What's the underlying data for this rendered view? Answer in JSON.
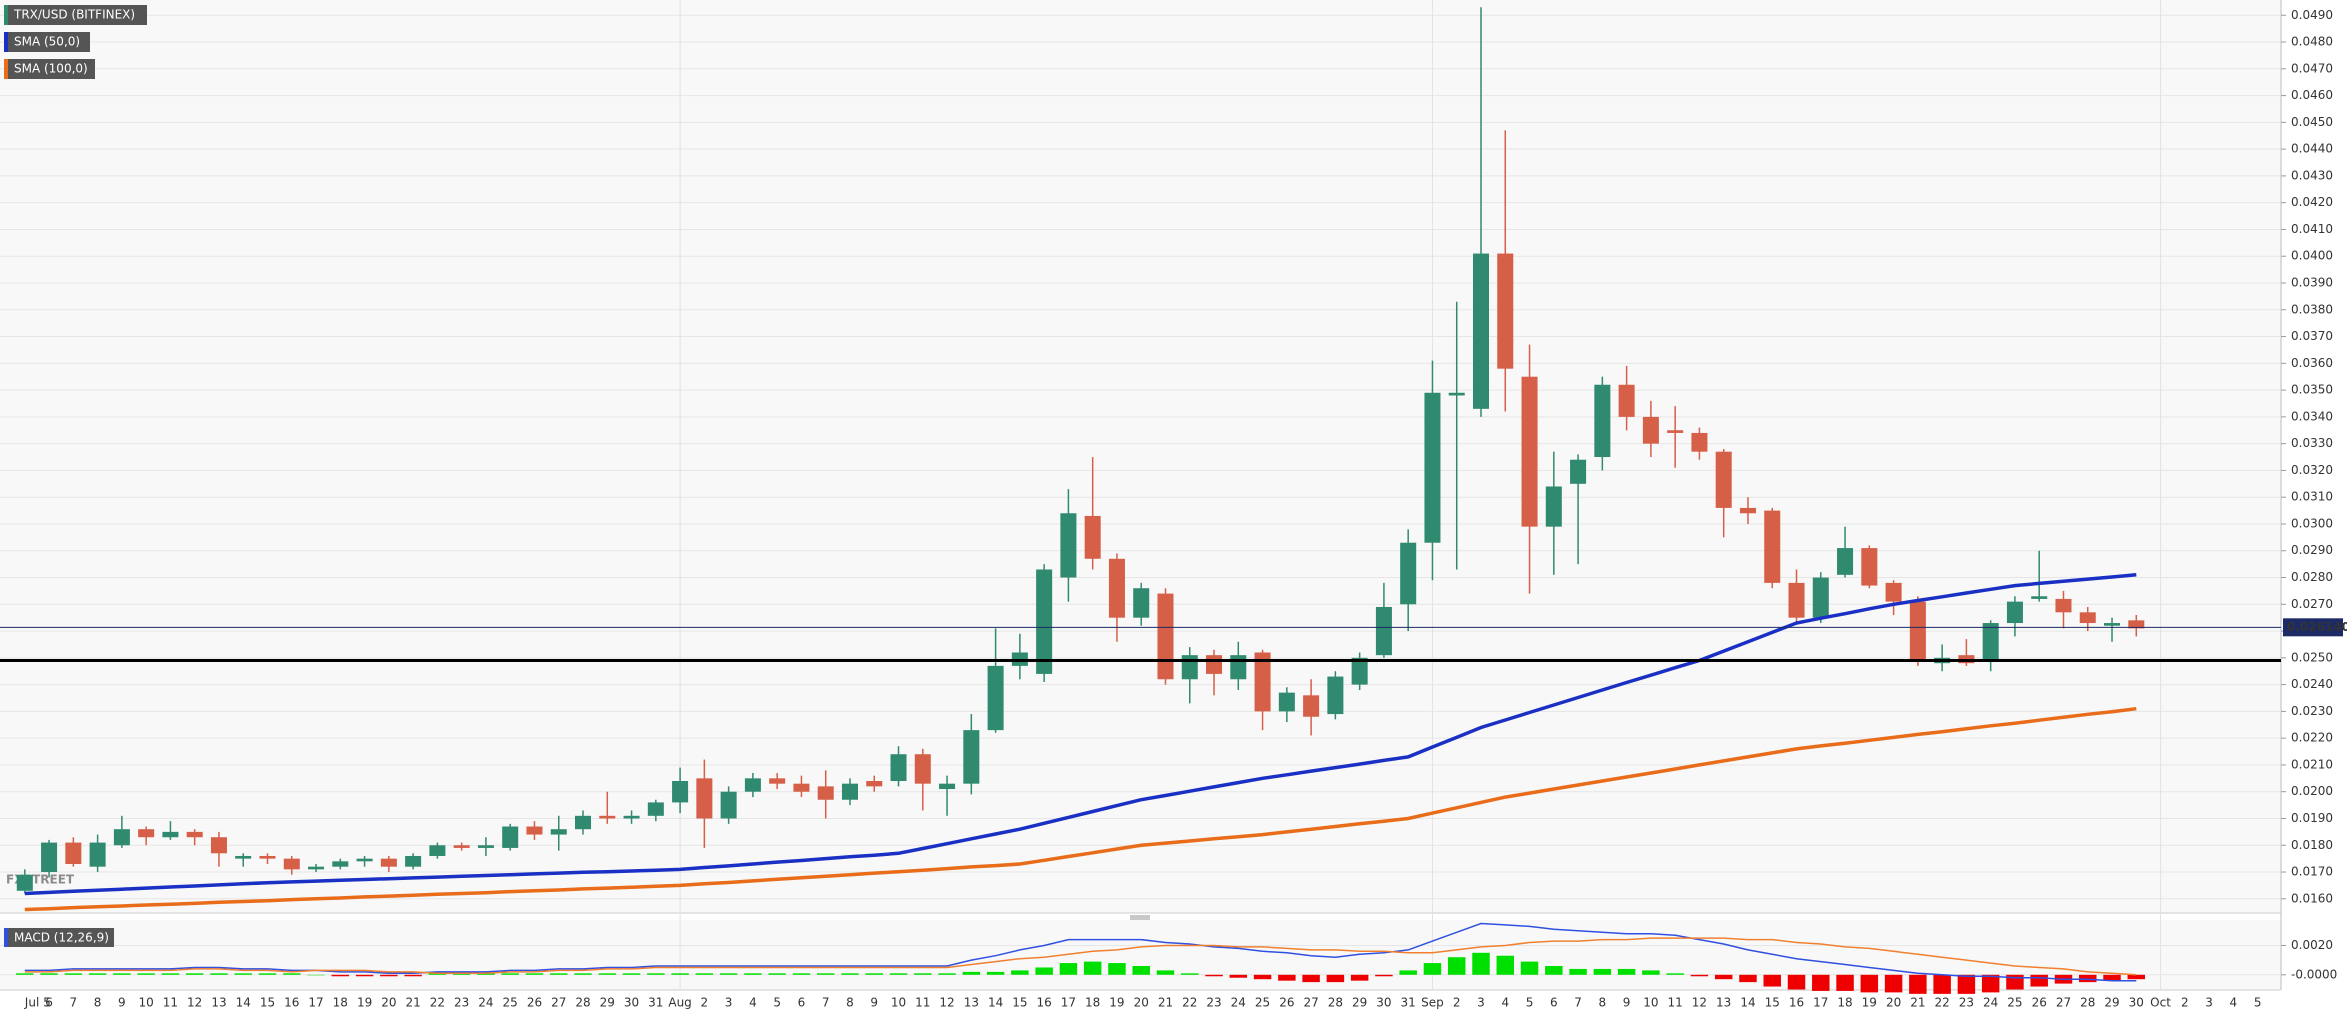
{
  "chart_data": [
    {
      "type": "candlestick",
      "title": "TRX/USD (BITFINEX)",
      "watermark": "FXSTREET",
      "categories": [
        "Jul 5",
        "6",
        "7",
        "8",
        "9",
        "10",
        "11",
        "12",
        "13",
        "14",
        "15",
        "16",
        "17",
        "18",
        "19",
        "20",
        "21",
        "22",
        "23",
        "24",
        "25",
        "26",
        "27",
        "28",
        "29",
        "30",
        "31",
        "Aug",
        "2",
        "3",
        "4",
        "5",
        "6",
        "7",
        "8",
        "9",
        "10",
        "11",
        "12",
        "13",
        "14",
        "15",
        "16",
        "17",
        "18",
        "19",
        "20",
        "21",
        "22",
        "23",
        "24",
        "25",
        "26",
        "27",
        "28",
        "29",
        "30",
        "31",
        "Sep",
        "2",
        "3",
        "4",
        "5",
        "6",
        "7",
        "8",
        "9",
        "10",
        "11",
        "12",
        "13",
        "14",
        "15",
        "16",
        "17",
        "18",
        "19",
        "20",
        "21",
        "22",
        "23",
        "24",
        "25",
        "26",
        "27",
        "28",
        "29",
        "30"
      ],
      "future_categories": [
        "Oct",
        "2",
        "3",
        "4",
        "5"
      ],
      "open": [
        0.0163,
        0.017,
        0.0181,
        0.0172,
        0.018,
        0.0186,
        0.0183,
        0.0185,
        0.0183,
        0.0175,
        0.0176,
        0.0175,
        0.0171,
        0.0172,
        0.0174,
        0.0175,
        0.0172,
        0.0176,
        0.018,
        0.0179,
        0.0179,
        0.0187,
        0.0184,
        0.0186,
        0.0191,
        0.019,
        0.0191,
        0.0196,
        0.0205,
        0.019,
        0.02,
        0.0205,
        0.0203,
        0.0202,
        0.0197,
        0.0204,
        0.0204,
        0.0214,
        0.0201,
        0.0203,
        0.0223,
        0.0247,
        0.0244,
        0.028,
        0.0303,
        0.0287,
        0.0265,
        0.0274,
        0.0242,
        0.0251,
        0.0242,
        0.0252,
        0.023,
        0.0236,
        0.0229,
        0.024,
        0.0251,
        0.027,
        0.0293,
        0.0348,
        0.0343,
        0.0401,
        0.0355,
        0.0299,
        0.0315,
        0.0325,
        0.0352,
        0.034,
        0.0335,
        0.0334,
        0.0327,
        0.0306,
        0.0305,
        0.0278,
        0.0265,
        0.0281,
        0.0291,
        0.0278,
        0.0271,
        0.0248,
        0.0251,
        0.0249,
        0.0263,
        0.0272,
        0.0272,
        0.0267,
        0.0262,
        0.0264
      ],
      "high": [
        0.0171,
        0.0182,
        0.0183,
        0.0184,
        0.0191,
        0.0187,
        0.0189,
        0.0186,
        0.0185,
        0.0177,
        0.0177,
        0.0176,
        0.0173,
        0.0175,
        0.0176,
        0.0176,
        0.0177,
        0.0181,
        0.0181,
        0.0183,
        0.0188,
        0.0189,
        0.0191,
        0.0193,
        0.02,
        0.0193,
        0.0197,
        0.0209,
        0.0212,
        0.0202,
        0.0207,
        0.0207,
        0.0206,
        0.0208,
        0.0205,
        0.0206,
        0.0217,
        0.0216,
        0.0206,
        0.0229,
        0.0261,
        0.0259,
        0.0285,
        0.0313,
        0.0325,
        0.0289,
        0.0278,
        0.0276,
        0.0254,
        0.0253,
        0.0256,
        0.0253,
        0.0239,
        0.0242,
        0.0245,
        0.0252,
        0.0278,
        0.0298,
        0.0361,
        0.0383,
        0.0493,
        0.0447,
        0.0367,
        0.0327,
        0.0326,
        0.0355,
        0.0359,
        0.0346,
        0.0344,
        0.0336,
        0.0328,
        0.031,
        0.0306,
        0.0283,
        0.0282,
        0.0299,
        0.0292,
        0.0279,
        0.0273,
        0.0255,
        0.0257,
        0.0264,
        0.0273,
        0.029,
        0.0275,
        0.0269,
        0.0265,
        0.0266
      ],
      "low": [
        0.0162,
        0.0168,
        0.0172,
        0.017,
        0.0179,
        0.018,
        0.0182,
        0.018,
        0.0172,
        0.0172,
        0.0173,
        0.0169,
        0.017,
        0.0171,
        0.0172,
        0.017,
        0.0171,
        0.0175,
        0.0178,
        0.0176,
        0.0178,
        0.0182,
        0.0178,
        0.0184,
        0.0188,
        0.0188,
        0.0189,
        0.0192,
        0.0179,
        0.0188,
        0.0198,
        0.0201,
        0.0198,
        0.019,
        0.0195,
        0.02,
        0.0202,
        0.0193,
        0.0191,
        0.0199,
        0.0222,
        0.0242,
        0.0241,
        0.0271,
        0.0283,
        0.0256,
        0.0262,
        0.024,
        0.0233,
        0.0236,
        0.0238,
        0.0223,
        0.0226,
        0.0221,
        0.0227,
        0.0238,
        0.025,
        0.026,
        0.0279,
        0.0283,
        0.034,
        0.0342,
        0.0274,
        0.0281,
        0.0285,
        0.032,
        0.0335,
        0.0325,
        0.0321,
        0.0324,
        0.0295,
        0.03,
        0.0276,
        0.0263,
        0.0263,
        0.028,
        0.0276,
        0.0266,
        0.0247,
        0.0245,
        0.0247,
        0.0245,
        0.0258,
        0.0271,
        0.0261,
        0.026,
        0.0256,
        0.0258
      ],
      "close": [
        0.0169,
        0.0181,
        0.0173,
        0.0181,
        0.0186,
        0.0183,
        0.0185,
        0.0183,
        0.0177,
        0.0176,
        0.0175,
        0.0171,
        0.0172,
        0.0174,
        0.0175,
        0.0172,
        0.0176,
        0.018,
        0.0179,
        0.018,
        0.0187,
        0.0184,
        0.0186,
        0.0191,
        0.019,
        0.0191,
        0.0196,
        0.0204,
        0.019,
        0.02,
        0.0205,
        0.0203,
        0.02,
        0.0197,
        0.0203,
        0.0202,
        0.0214,
        0.0203,
        0.0203,
        0.0223,
        0.0247,
        0.0252,
        0.0283,
        0.0304,
        0.0287,
        0.0265,
        0.0276,
        0.0242,
        0.0251,
        0.0244,
        0.0251,
        0.023,
        0.0237,
        0.0228,
        0.0243,
        0.025,
        0.0269,
        0.0293,
        0.0349,
        0.0349,
        0.0401,
        0.0358,
        0.0299,
        0.0314,
        0.0324,
        0.0352,
        0.034,
        0.033,
        0.0334,
        0.0327,
        0.0306,
        0.0304,
        0.0278,
        0.0265,
        0.028,
        0.0291,
        0.0277,
        0.0271,
        0.0249,
        0.025,
        0.0248,
        0.0263,
        0.0271,
        0.0273,
        0.0267,
        0.0263,
        0.0263,
        0.0261
      ],
      "up_color": "#2f8a70",
      "down_color": "#d65f48",
      "series": [
        {
          "name": "SMA (50,0)",
          "color": "#1a30c4",
          "values": [
            0.0162,
            0.01624,
            0.01628,
            0.01632,
            0.01636,
            0.0164,
            0.01644,
            0.01648,
            0.01652,
            0.01656,
            0.0166,
            0.01663,
            0.01666,
            0.01669,
            0.01672,
            0.01675,
            0.01678,
            0.01681,
            0.01684,
            0.01687,
            0.0169,
            0.01693,
            0.01696,
            0.01699,
            0.01701,
            0.01704,
            0.01707,
            0.0171,
            0.01717,
            0.01723,
            0.0173,
            0.01737,
            0.01743,
            0.0175,
            0.01757,
            0.01763,
            0.0177,
            0.01788,
            0.01806,
            0.01824,
            0.01842,
            0.0186,
            0.01882,
            0.01904,
            0.01926,
            0.01948,
            0.0197,
            0.01986,
            0.02002,
            0.02018,
            0.02034,
            0.0205,
            0.02063,
            0.02077,
            0.0209,
            0.02103,
            0.02117,
            0.0213,
            0.02167,
            0.02203,
            0.0224,
            0.02268,
            0.02296,
            0.02324,
            0.02352,
            0.0238,
            0.02408,
            0.02435,
            0.02463,
            0.0249,
            0.02525,
            0.0256,
            0.02595,
            0.0263,
            0.02648,
            0.02665,
            0.02683,
            0.027,
            0.02714,
            0.02728,
            0.02742,
            0.02756,
            0.0277,
            0.02778,
            0.02786,
            0.02794,
            0.02802,
            0.0281
          ]
        },
        {
          "name": "SMA (100,0)",
          "color": "#e86c1a",
          "values": [
            0.0156,
            0.01563,
            0.01567,
            0.0157,
            0.01573,
            0.01577,
            0.0158,
            0.01583,
            0.01587,
            0.0159,
            0.01593,
            0.01597,
            0.016,
            0.01603,
            0.01607,
            0.0161,
            0.01613,
            0.01617,
            0.0162,
            0.01623,
            0.01627,
            0.0163,
            0.01633,
            0.01637,
            0.0164,
            0.01643,
            0.01647,
            0.0165,
            0.01656,
            0.01661,
            0.01667,
            0.01673,
            0.01679,
            0.01684,
            0.0169,
            0.01696,
            0.01701,
            0.01707,
            0.01713,
            0.01719,
            0.01724,
            0.0173,
            0.01744,
            0.01758,
            0.01772,
            0.01786,
            0.018,
            0.01808,
            0.01816,
            0.01824,
            0.01832,
            0.0184,
            0.0185,
            0.0186,
            0.0187,
            0.0188,
            0.0189,
            0.019,
            0.0192,
            0.0194,
            0.0196,
            0.0198,
            0.01995,
            0.0201,
            0.02025,
            0.0204,
            0.02055,
            0.0207,
            0.02085,
            0.021,
            0.02115,
            0.0213,
            0.02145,
            0.0216,
            0.02171,
            0.02181,
            0.02192,
            0.02203,
            0.02214,
            0.02224,
            0.02235,
            0.02246,
            0.02256,
            0.02267,
            0.02278,
            0.02289,
            0.02299,
            0.0231
          ]
        }
      ],
      "support": 0.0249,
      "support_color": "#000000",
      "last_price": {
        "value": 0.02614,
        "label": "0.026140"
      },
      "last_price_color": "#1c2a66",
      "ylim": [
        0.01547,
        0.04957
      ],
      "yticks": [
        {
          "value": 0.016,
          "label": "0.0160"
        },
        {
          "value": 0.017,
          "label": "0.0170"
        },
        {
          "value": 0.018,
          "label": "0.0180"
        },
        {
          "value": 0.019,
          "label": "0.0190"
        },
        {
          "value": 0.02,
          "label": "0.0200"
        },
        {
          "value": 0.021,
          "label": "0.0210"
        },
        {
          "value": 0.022,
          "label": "0.0220"
        },
        {
          "value": 0.023,
          "label": "0.0230"
        },
        {
          "value": 0.024,
          "label": "0.0240"
        },
        {
          "value": 0.025,
          "label": "0.0250"
        },
        {
          "value": 0.026,
          "label": "0.0260"
        },
        {
          "value": 0.027,
          "label": "0.0270"
        },
        {
          "value": 0.028,
          "label": "0.0280"
        },
        {
          "value": 0.029,
          "label": "0.0290"
        },
        {
          "value": 0.03,
          "label": "0.0300"
        },
        {
          "value": 0.031,
          "label": "0.0310"
        },
        {
          "value": 0.032,
          "label": "0.0320"
        },
        {
          "value": 0.033,
          "label": "0.0330"
        },
        {
          "value": 0.034,
          "label": "0.0340"
        },
        {
          "value": 0.035,
          "label": "0.0350"
        },
        {
          "value": 0.036,
          "label": "0.0360"
        },
        {
          "value": 0.037,
          "label": "0.0370"
        },
        {
          "value": 0.038,
          "label": "0.0380"
        },
        {
          "value": 0.039,
          "label": "0.0390"
        },
        {
          "value": 0.04,
          "label": "0.0400"
        },
        {
          "value": 0.041,
          "label": "0.0410"
        },
        {
          "value": 0.042,
          "label": "0.0420"
        },
        {
          "value": 0.043,
          "label": "0.0430"
        },
        {
          "value": 0.044,
          "label": "0.0440"
        },
        {
          "value": 0.045,
          "label": "0.0450"
        },
        {
          "value": 0.046,
          "label": "0.0460"
        },
        {
          "value": 0.047,
          "label": "0.0470"
        },
        {
          "value": 0.048,
          "label": "0.0480"
        },
        {
          "value": 0.049,
          "label": "0.0490"
        }
      ],
      "grid": true
    },
    {
      "type": "macd",
      "title": "MACD (12,26,9)",
      "histogram": [
        0.0001,
        0.0001,
        0.0001,
        0.0001,
        0.0001,
        0.0001,
        0.0001,
        0.0001,
        0.0001,
        0.0001,
        0.0001,
        0.0001,
        0,
        -0.0001,
        -0.0001,
        -0.0001,
        -0.0001,
        0.0001,
        0.0001,
        0.0001,
        0.0001,
        0.0001,
        0.0001,
        0.0001,
        0.0001,
        0.0001,
        0.0001,
        0.0001,
        0.0001,
        0.0001,
        0.0001,
        0.0001,
        0.0001,
        0.0001,
        0.0001,
        0.0001,
        0.0001,
        0.0001,
        0.0001,
        0.0002,
        0.0002,
        0.0003,
        0.0005,
        0.0008,
        0.0009,
        0.0008,
        0.0006,
        0.0003,
        0.0001,
        -0.0001,
        -0.0002,
        -0.0003,
        -0.0004,
        -0.0005,
        -0.0005,
        -0.0004,
        -0.0001,
        0.0003,
        0.0008,
        0.0012,
        0.0015,
        0.0013,
        0.0009,
        0.0006,
        0.0004,
        0.0004,
        0.0004,
        0.0003,
        0.0001,
        -0.0001,
        -0.0003,
        -0.0005,
        -0.0008,
        -0.001,
        -0.0011,
        -0.0011,
        -0.0012,
        -0.0012,
        -0.0013,
        -0.0013,
        -0.0013,
        -0.0012,
        -0.001,
        -0.0008,
        -0.0006,
        -0.0005,
        -0.0004,
        -0.0003
      ],
      "up_color": "#00e000",
      "down_color": "#ee0000",
      "series": [
        {
          "color": "#3050e0",
          "values": [
            0.0003,
            0.0003,
            0.0004,
            0.0004,
            0.0004,
            0.0004,
            0.0004,
            0.0005,
            0.0005,
            0.0004,
            0.0004,
            0.0003,
            0.0003,
            0.0002,
            0.0002,
            0.0001,
            0.0001,
            0.0002,
            0.0002,
            0.0002,
            0.0003,
            0.0003,
            0.0004,
            0.0004,
            0.0005,
            0.0005,
            0.0006,
            0.0006,
            0.0006,
            0.0006,
            0.0006,
            0.0006,
            0.0006,
            0.0006,
            0.0006,
            0.0006,
            0.0006,
            0.0006,
            0.0006,
            0.001,
            0.0013,
            0.0017,
            0.002,
            0.0024,
            0.0024,
            0.0024,
            0.0024,
            0.0022,
            0.0021,
            0.0019,
            0.0018,
            0.0016,
            0.0015,
            0.0013,
            0.0012,
            0.0014,
            0.0015,
            0.0017,
            0.0023,
            0.0029,
            0.0035,
            0.0034,
            0.0033,
            0.0031,
            0.003,
            0.0029,
            0.0028,
            0.0028,
            0.0027,
            0.0024,
            0.0021,
            0.0017,
            0.0014,
            0.0011,
            0.0009,
            0.0007,
            0.0005,
            0.0003,
            0.0001,
            0,
            -0.0001,
            -0.0001,
            -0.0002,
            -0.0002,
            -0.0003,
            -0.0003,
            -0.0004,
            -0.0004
          ]
        },
        {
          "color": "#f08030",
          "values": [
            0.0002,
            0.0002,
            0.0003,
            0.0003,
            0.0003,
            0.0003,
            0.0003,
            0.0004,
            0.0004,
            0.0003,
            0.0003,
            0.0002,
            0.0003,
            0.0003,
            0.0003,
            0.0002,
            0.0002,
            0.0001,
            0.0001,
            0.0001,
            0.0002,
            0.0002,
            0.0003,
            0.0003,
            0.0004,
            0.0004,
            0.0005,
            0.0005,
            0.0005,
            0.0005,
            0.0005,
            0.0005,
            0.0005,
            0.0005,
            0.0005,
            0.0005,
            0.0005,
            0.0005,
            0.0005,
            0.0007,
            0.0009,
            0.0011,
            0.0012,
            0.0014,
            0.0016,
            0.0017,
            0.0019,
            0.002,
            0.002,
            0.002,
            0.0019,
            0.0019,
            0.0018,
            0.0017,
            0.0017,
            0.0016,
            0.0016,
            0.0015,
            0.0015,
            0.0017,
            0.0019,
            0.002,
            0.0022,
            0.0023,
            0.0023,
            0.0024,
            0.0024,
            0.0025,
            0.0025,
            0.0025,
            0.0025,
            0.0024,
            0.0024,
            0.0022,
            0.0021,
            0.0019,
            0.0018,
            0.0016,
            0.0014,
            0.0012,
            0.001,
            0.0008,
            0.0006,
            0.0005,
            0.0004,
            0.0002,
            0.0001,
            0
          ]
        }
      ],
      "ylim": [
        -0.0009,
        0.0036
      ],
      "yticks": [
        {
          "value": 0,
          "label": "-0.0000"
        },
        {
          "value": 0.002,
          "label": "0.0020"
        }
      ]
    }
  ]
}
